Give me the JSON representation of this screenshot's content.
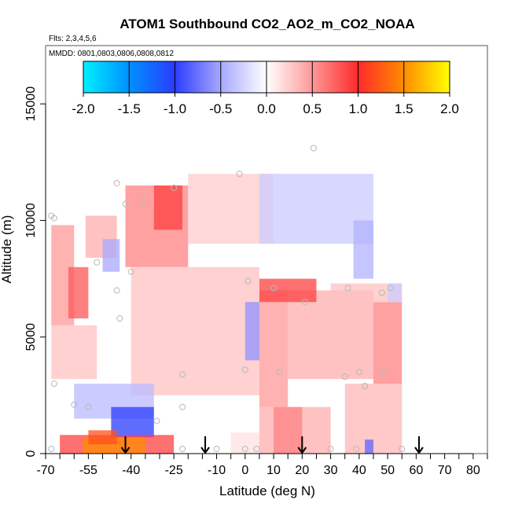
{
  "chart_data": {
    "type": "heatmap",
    "title": "ATOM1 Southbound CO2_AO2_m_CO2_NOAA",
    "flights_note": "Flts: 2,3,4,5,6",
    "mmdd_note": "MMDD: 0801,0803,0806,0808,0812",
    "xlabel": "Latitude (deg N)",
    "ylabel": "Altitude (m)",
    "xlim": [
      -70,
      85
    ],
    "ylim": [
      0,
      17500
    ],
    "x_tick_labels": [
      "-70",
      "-55",
      "-40",
      "-25",
      "-10",
      "0",
      "10",
      "20",
      "30",
      "40",
      "50",
      "60",
      "70",
      "80"
    ],
    "x_tick_values": [
      -70,
      -55,
      -40,
      -25,
      -10,
      0,
      10,
      20,
      30,
      40,
      50,
      60,
      70,
      80
    ],
    "x_minor_ticks": [
      -65,
      -60,
      -50,
      -45,
      -35,
      -30,
      -20,
      -15,
      -5,
      5,
      15,
      25,
      35,
      45,
      55,
      65,
      75,
      85
    ],
    "y_tick_labels": [
      "0",
      "5000",
      "10000",
      "15000"
    ],
    "y_tick_values": [
      0,
      5000,
      10000,
      15000
    ],
    "colorbar": {
      "min": -2.0,
      "max": 2.0,
      "tick_labels": [
        "-2.0",
        "-1.5",
        "-1.0",
        "-0.5",
        "0.0",
        "0.5",
        "1.0",
        "1.5",
        "2.0"
      ],
      "tick_values": [
        -2.0,
        -1.5,
        -1.0,
        -0.5,
        0.0,
        0.5,
        1.0,
        1.5,
        2.0
      ],
      "color_stops": [
        {
          "v": -2.0,
          "c": "#00f0ff"
        },
        {
          "v": -1.5,
          "c": "#0090ff"
        },
        {
          "v": -1.0,
          "c": "#2a3cff"
        },
        {
          "v": -0.5,
          "c": "#a8a8ff"
        },
        {
          "v": 0.0,
          "c": "#ffffff"
        },
        {
          "v": 0.5,
          "c": "#ff9898"
        },
        {
          "v": 1.0,
          "c": "#ff2a2a"
        },
        {
          "v": 1.5,
          "c": "#ff8c00"
        },
        {
          "v": 2.0,
          "c": "#ffff00"
        }
      ]
    },
    "regions": [
      {
        "lat": [
          -68,
          -60
        ],
        "alt": [
          5500,
          9800
        ],
        "value": 0.5
      },
      {
        "lat": [
          -62,
          -55
        ],
        "alt": [
          5800,
          8000
        ],
        "value": 0.8
      },
      {
        "lat": [
          -56,
          -45
        ],
        "alt": [
          8400,
          10200
        ],
        "value": 0.4
      },
      {
        "lat": [
          -50,
          -44
        ],
        "alt": [
          7800,
          9200
        ],
        "value": -0.5
      },
      {
        "lat": [
          -68,
          -52
        ],
        "alt": [
          3200,
          5500
        ],
        "value": 0.3
      },
      {
        "lat": [
          -42,
          -20
        ],
        "alt": [
          8000,
          11500
        ],
        "value": 0.6
      },
      {
        "lat": [
          -32,
          -22
        ],
        "alt": [
          9600,
          11500
        ],
        "value": 0.9
      },
      {
        "lat": [
          -20,
          10
        ],
        "alt": [
          9000,
          12000
        ],
        "value": 0.25
      },
      {
        "lat": [
          -40,
          5
        ],
        "alt": [
          2500,
          8000
        ],
        "value": 0.3
      },
      {
        "lat": [
          5,
          45
        ],
        "alt": [
          9000,
          12000
        ],
        "value": -0.3
      },
      {
        "lat": [
          38,
          45
        ],
        "alt": [
          7500,
          10000
        ],
        "value": -0.45
      },
      {
        "lat": [
          0,
          5
        ],
        "alt": [
          4000,
          6500
        ],
        "value": -0.6
      },
      {
        "lat": [
          5,
          15
        ],
        "alt": [
          2000,
          7000
        ],
        "value": 0.5
      },
      {
        "lat": [
          15,
          45
        ],
        "alt": [
          3200,
          7000
        ],
        "value": 0.4
      },
      {
        "lat": [
          5,
          25
        ],
        "alt": [
          6500,
          7500
        ],
        "value": 0.9
      },
      {
        "lat": [
          45,
          55
        ],
        "alt": [
          3000,
          6500
        ],
        "value": 0.6
      },
      {
        "lat": [
          30,
          55
        ],
        "alt": [
          6500,
          7300
        ],
        "value": 0.3
      },
      {
        "lat": [
          50,
          55
        ],
        "alt": [
          6500,
          7300
        ],
        "value": -0.3
      },
      {
        "lat": [
          -60,
          -32
        ],
        "alt": [
          1500,
          3000
        ],
        "value": -0.4
      },
      {
        "lat": [
          -47,
          -32
        ],
        "alt": [
          700,
          2000
        ],
        "value": -1.0
      },
      {
        "lat": [
          -65,
          -25
        ],
        "alt": [
          0,
          800
        ],
        "value": 0.9
      },
      {
        "lat": [
          -57,
          -35
        ],
        "alt": [
          0,
          700
        ],
        "value": 1.5
      },
      {
        "lat": [
          -55,
          -45
        ],
        "alt": [
          400,
          1000
        ],
        "value": 1.2
      },
      {
        "lat": [
          -5,
          5
        ],
        "alt": [
          0,
          900
        ],
        "value": 0.15
      },
      {
        "lat": [
          5,
          30
        ],
        "alt": [
          0,
          2000
        ],
        "value": 0.4
      },
      {
        "lat": [
          10,
          20
        ],
        "alt": [
          0,
          2000
        ],
        "value": 0.6
      },
      {
        "lat": [
          35,
          55
        ],
        "alt": [
          0,
          3000
        ],
        "value": 0.35
      },
      {
        "lat": [
          42,
          45
        ],
        "alt": [
          0,
          600
        ],
        "value": -0.8
      }
    ],
    "sample_points": [
      {
        "lat": -68,
        "alt": 10200
      },
      {
        "lat": -67,
        "alt": 10100
      },
      {
        "lat": -67,
        "alt": 3000
      },
      {
        "lat": -60,
        "alt": 2100
      },
      {
        "lat": -55,
        "alt": 2000
      },
      {
        "lat": -52,
        "alt": 8200
      },
      {
        "lat": -45,
        "alt": 11600
      },
      {
        "lat": -42,
        "alt": 10700
      },
      {
        "lat": -45,
        "alt": 7000
      },
      {
        "lat": -44,
        "alt": 5800
      },
      {
        "lat": -40,
        "alt": 7800
      },
      {
        "lat": -36,
        "alt": 10800
      },
      {
        "lat": -31,
        "alt": 1400
      },
      {
        "lat": -25,
        "alt": 11400
      },
      {
        "lat": -22,
        "alt": 3400
      },
      {
        "lat": -22,
        "alt": 2000
      },
      {
        "lat": -22,
        "alt": 200
      },
      {
        "lat": -10,
        "alt": 200
      },
      {
        "lat": -2,
        "alt": 12000
      },
      {
        "lat": 1,
        "alt": 7400
      },
      {
        "lat": 0,
        "alt": 3600
      },
      {
        "lat": 0,
        "alt": 200
      },
      {
        "lat": 4,
        "alt": 200
      },
      {
        "lat": 10,
        "alt": 7100
      },
      {
        "lat": 12,
        "alt": 3500
      },
      {
        "lat": 21,
        "alt": 6500
      },
      {
        "lat": 24,
        "alt": 13100
      },
      {
        "lat": 30,
        "alt": 200
      },
      {
        "lat": 36,
        "alt": 7100
      },
      {
        "lat": 35,
        "alt": 3300
      },
      {
        "lat": 40,
        "alt": 3500
      },
      {
        "lat": 42,
        "alt": 2900
      },
      {
        "lat": 48,
        "alt": 6900
      },
      {
        "lat": 48,
        "alt": 3500
      },
      {
        "lat": 51,
        "alt": 7100
      },
      {
        "lat": 55,
        "alt": 200
      },
      {
        "lat": -68,
        "alt": 200
      },
      {
        "lat": 39,
        "alt": 200
      }
    ],
    "arrow_latitudes": [
      -42,
      -14,
      20,
      61
    ]
  }
}
